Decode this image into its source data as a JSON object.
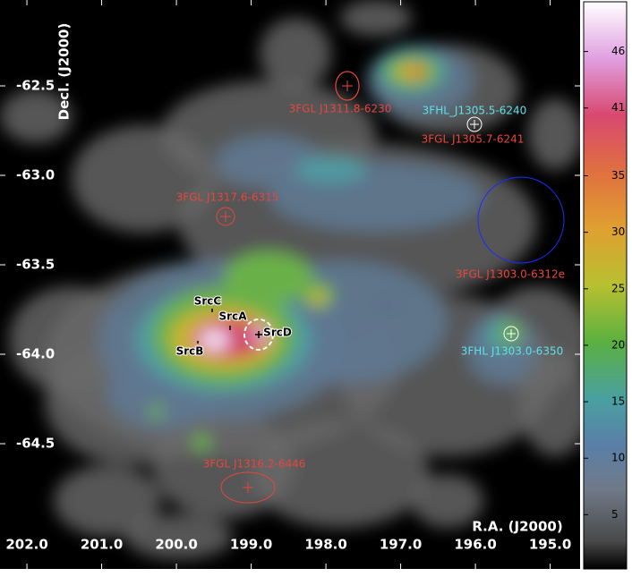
{
  "chart_data": {
    "type": "skymap",
    "xlabel": "R.A. (J2000)",
    "ylabel": "Decl. (J2000)",
    "xlim": [
      202.36,
      194.6
    ],
    "ylim": [
      -65.2,
      -62.02
    ],
    "xticks": [
      {
        "value": 202,
        "label": "202.0"
      },
      {
        "value": 201,
        "label": "201.0"
      },
      {
        "value": 200,
        "label": "200.0"
      },
      {
        "value": 199,
        "label": "199.0"
      },
      {
        "value": 198,
        "label": "198.0"
      },
      {
        "value": 197,
        "label": "197.0"
      },
      {
        "value": 196,
        "label": "196.0"
      },
      {
        "value": 195,
        "label": "195.0"
      }
    ],
    "yticks": [
      -62.5,
      {
        "value": -63,
        "label": "-63.0"
      },
      -63.5,
      {
        "value": -64,
        "label": "-64.0"
      },
      -64.5
    ],
    "colorbar": {
      "lim": [
        0.2,
        50.4
      ],
      "ticks": [
        5,
        10,
        15,
        20,
        25,
        30,
        35,
        41,
        46
      ]
    },
    "annotations": [
      {
        "text": "3FGL J1311.8-6230",
        "color": "#e8453c"
      },
      {
        "text": "3FHL_J1305.5-6240",
        "color": "#5fe0e8"
      },
      {
        "text": "3FGL J1305.7-6241",
        "color": "#e8453c"
      },
      {
        "text": "3FGL J1317.6-6315",
        "color": "#e8453c"
      },
      {
        "text": "3FGL J1303.0-6312e",
        "color": "#e8453c"
      },
      {
        "text": "3FHL J1303.0-6350",
        "color": "#5fe0e8"
      },
      {
        "text": "3FGL J1316.2-6446",
        "color": "#e8453c"
      },
      {
        "text": "SrcC",
        "color": "#000000"
      },
      {
        "text": "SrcA",
        "color": "#000000"
      },
      {
        "text": "SrcB",
        "color": "#000000"
      },
      {
        "text": "SrcD",
        "color": "#000000"
      }
    ]
  }
}
